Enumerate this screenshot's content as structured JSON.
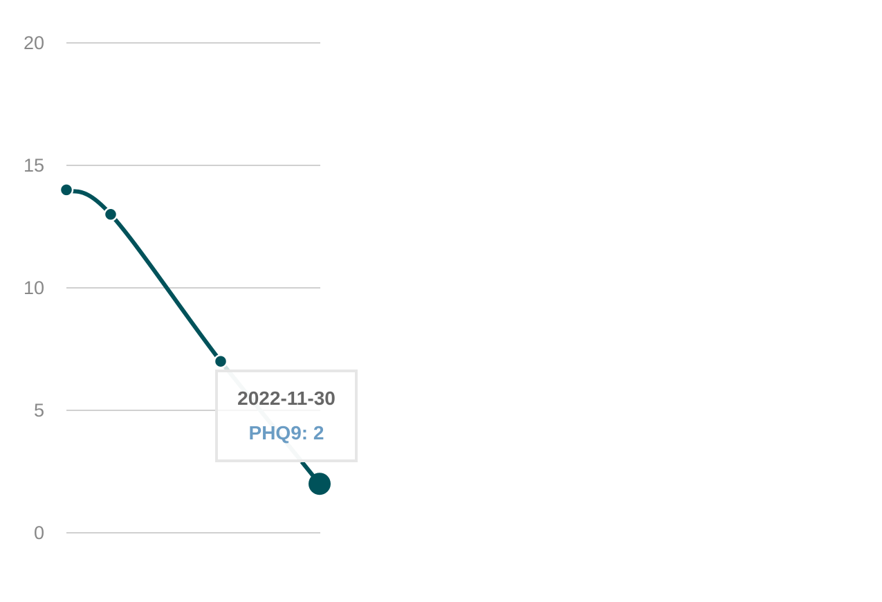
{
  "chart_data": {
    "type": "line",
    "x": [
      "",
      "",
      "",
      "2022-11-30"
    ],
    "series": [
      {
        "values": [
          14,
          13,
          7,
          2
        ]
      }
    ],
    "ylim": [
      0,
      20
    ],
    "yticks": [
      0,
      5,
      10,
      15,
      20
    ],
    "grid": true,
    "colors": {
      "line": "#00525a",
      "highlight_line": "#cfe0e0",
      "grid": "#b5b5b5"
    },
    "tooltip": {
      "date": "2022-11-30",
      "label": "PHQ9: 2"
    }
  }
}
